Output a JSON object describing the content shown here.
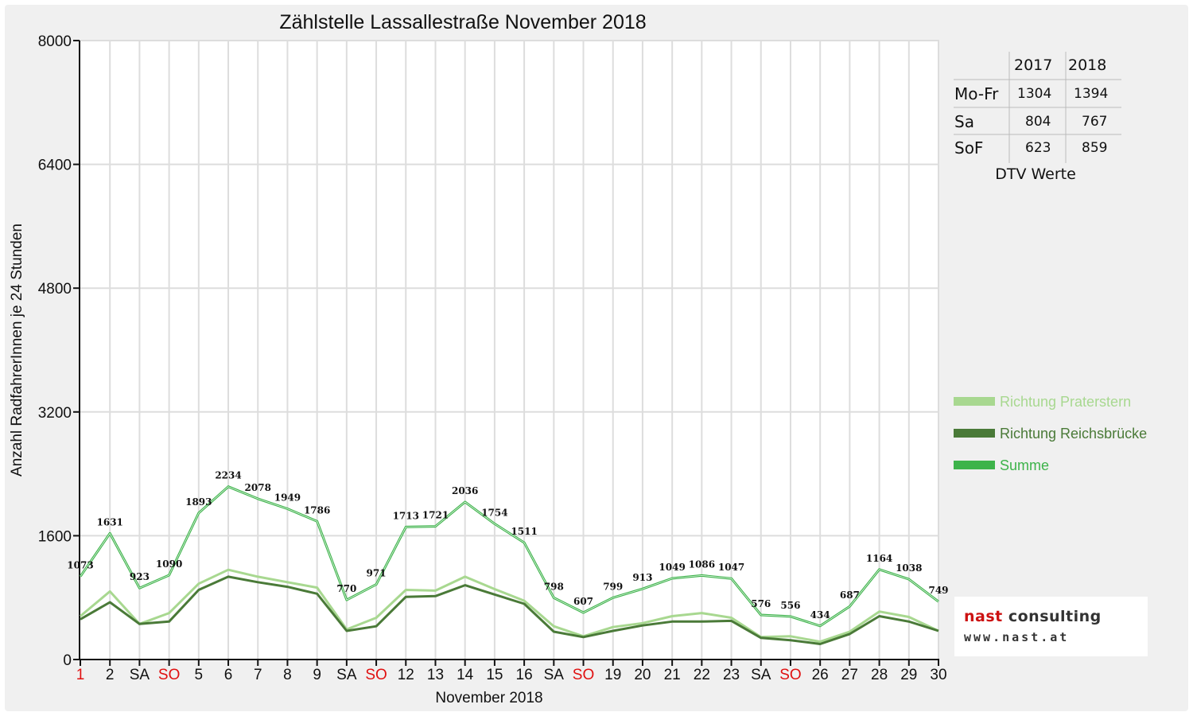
{
  "chart_data": {
    "type": "line",
    "title": "Zählstelle Lassallestraße November 2018",
    "xlabel": "November 2018",
    "ylabel": "Anzahl RadfahrerInnen je 24 Stunden",
    "ylim": [
      0,
      8000
    ],
    "yticks": [
      0,
      1600,
      3200,
      4800,
      6400,
      8000
    ],
    "grid": true,
    "legend_position": "right",
    "categories": [
      "1",
      "2",
      "SA",
      "SO",
      "5",
      "6",
      "7",
      "8",
      "9",
      "SA",
      "SO",
      "12",
      "13",
      "14",
      "15",
      "16",
      "SA",
      "SO",
      "19",
      "20",
      "21",
      "22",
      "23",
      "SA",
      "SO",
      "26",
      "27",
      "28",
      "29",
      "30"
    ],
    "red_categories": [
      0,
      3,
      10,
      17,
      24
    ],
    "series": [
      {
        "name": "Richtung Praterstern",
        "color": "#a8d890",
        "values": [
          560,
          880,
          460,
          600,
          980,
          1160,
          1070,
          1000,
          930,
          390,
          540,
          900,
          890,
          1070,
          910,
          760,
          430,
          300,
          420,
          470,
          560,
          600,
          540,
          290,
          300,
          230,
          360,
          620,
          550,
          370
        ]
      },
      {
        "name": "Richtung Reichsbrücke",
        "color": "#4a7a38",
        "values": [
          520,
          740,
          460,
          490,
          900,
          1070,
          1000,
          940,
          850,
          370,
          430,
          810,
          820,
          960,
          840,
          720,
          360,
          290,
          370,
          440,
          490,
          490,
          500,
          280,
          250,
          200,
          330,
          560,
          490,
          370
        ]
      },
      {
        "name": "Summe",
        "color": "#3db34a",
        "values": [
          1073,
          1631,
          923,
          1090,
          1893,
          2234,
          2078,
          1949,
          1786,
          770,
          971,
          1713,
          1721,
          2036,
          1754,
          1511,
          798,
          607,
          799,
          913,
          1049,
          1086,
          1047,
          576,
          556,
          434,
          687,
          1164,
          1038,
          749
        ]
      }
    ]
  },
  "dtv": {
    "years": [
      "2017",
      "2018"
    ],
    "rows": [
      {
        "label": "Mo-Fr",
        "v2017": "1304",
        "v2018": "1394"
      },
      {
        "label": "Sa",
        "v2017": "804",
        "v2018": "767"
      },
      {
        "label": "SoF",
        "v2017": "623",
        "v2018": "859"
      }
    ],
    "caption": "DTV Werte"
  },
  "logo": {
    "name_part1": "nast",
    "name_part2": " consulting",
    "url": "www.nast.at"
  }
}
